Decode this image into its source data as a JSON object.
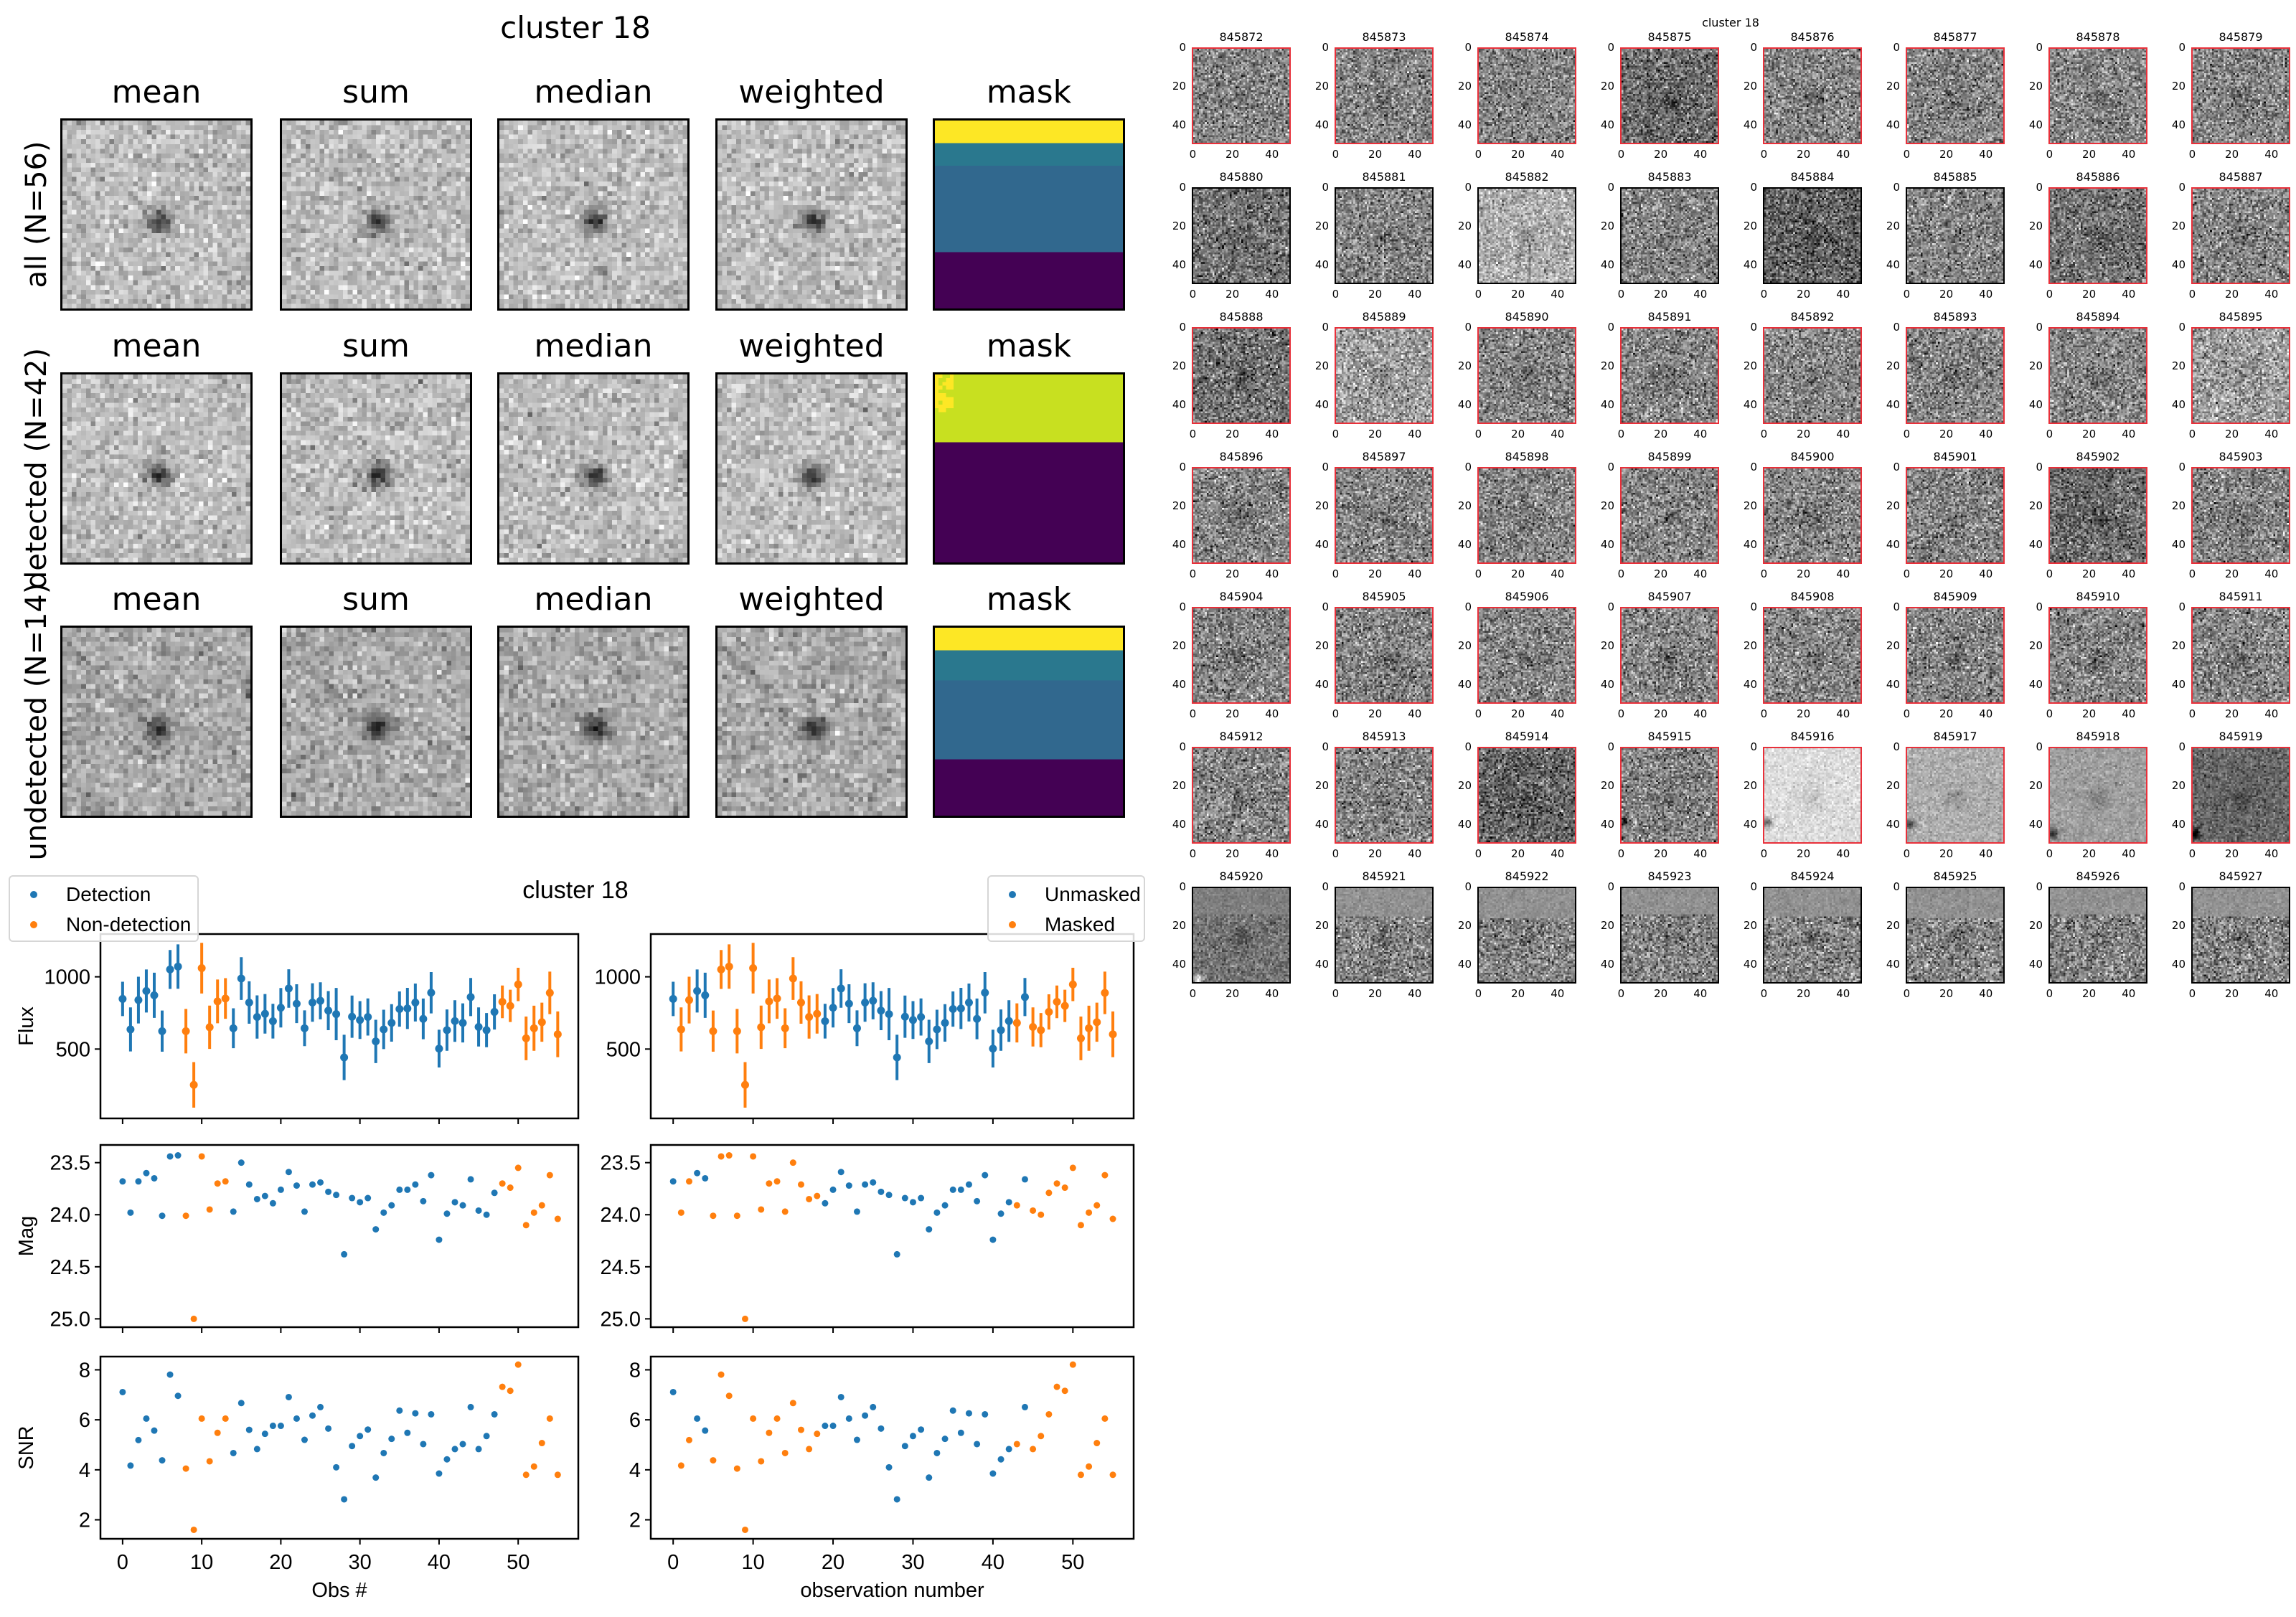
{
  "top_figure": {
    "title": "cluster 18",
    "column_titles": [
      "mean",
      "sum",
      "median",
      "weighted",
      "mask"
    ],
    "row_labels": [
      "all (N=56)",
      "detected (N=42)",
      "undetected (N=14)"
    ]
  },
  "colors": {
    "detection": "#1f77b4",
    "nondetection": "#ff7f0e",
    "detected_border": "#e8303a"
  },
  "chart_data": [
    {
      "type": "scatter",
      "title": "cluster 18",
      "panels": [
        "Flux",
        "Mag",
        "SNR"
      ],
      "left": {
        "legend": [
          "Detection",
          "Non-detection"
        ],
        "legend_position": "top-left",
        "xlabel": "Obs #",
        "color_by": "detected"
      },
      "right": {
        "legend": [
          "Unmasked",
          "Masked"
        ],
        "legend_position": "top-right",
        "xlabel": "observation number",
        "color_by": "masked"
      },
      "xlim": [
        -2.8,
        57.6
      ],
      "xticks": [
        0,
        10,
        20,
        30,
        40,
        50
      ],
      "xtick_labels": [
        "0",
        "10",
        "20",
        "30",
        "40",
        "50"
      ],
      "flux": {
        "ylabel": "Flux",
        "ylim": [
          20,
          1296
        ],
        "yticks": [
          500,
          1000
        ],
        "ytick_labels": [
          "500",
          "1000"
        ]
      },
      "mag": {
        "ylabel": "Mag",
        "ylim": [
          23.33,
          25.08
        ],
        "inverted": true,
        "yticks": [
          23.5,
          24.0,
          24.5,
          25.0
        ],
        "ytick_labels": [
          "23.5",
          "24.0",
          "24.5",
          "25.0"
        ]
      },
      "snr": {
        "ylabel": "SNR",
        "ylim": [
          1.24,
          8.53
        ],
        "yticks": [
          2,
          4,
          6,
          8
        ],
        "ytick_labels": [
          "2",
          "4",
          "6",
          "8"
        ]
      },
      "x": [
        0,
        1,
        2,
        3,
        4,
        5,
        6,
        7,
        8,
        9,
        10,
        11,
        12,
        13,
        14,
        15,
        16,
        17,
        18,
        19,
        20,
        21,
        22,
        23,
        24,
        25,
        26,
        27,
        28,
        29,
        30,
        31,
        32,
        33,
        34,
        35,
        36,
        37,
        38,
        39,
        40,
        41,
        42,
        43,
        44,
        45,
        46,
        47,
        48,
        49,
        50,
        51,
        52,
        53,
        54,
        55
      ],
      "flux_values": [
        847,
        636,
        839,
        902,
        872,
        624,
        1051,
        1071,
        624,
        252,
        1060,
        651,
        830,
        850,
        644,
        988,
        822,
        722,
        744,
        693,
        786,
        919,
        814,
        644,
        822,
        834,
        766,
        742,
        442,
        724,
        701,
        722,
        553,
        636,
        681,
        777,
        781,
        822,
        709,
        890,
        503,
        631,
        694,
        681,
        860,
        653,
        631,
        757,
        827,
        799,
        947,
        574,
        644,
        686,
        889,
        602
      ],
      "mag_values": [
        23.68,
        23.98,
        23.68,
        23.6,
        23.65,
        24.01,
        23.44,
        23.43,
        24.01,
        25.0,
        23.44,
        23.95,
        23.7,
        23.68,
        23.97,
        23.5,
        23.71,
        23.85,
        23.82,
        23.89,
        23.76,
        23.59,
        23.72,
        23.97,
        23.71,
        23.69,
        23.78,
        23.81,
        24.38,
        23.84,
        23.88,
        23.84,
        24.14,
        23.98,
        23.91,
        23.76,
        23.76,
        23.71,
        23.87,
        23.62,
        24.24,
        23.99,
        23.88,
        23.91,
        23.66,
        23.96,
        24.0,
        23.79,
        23.7,
        23.74,
        23.55,
        24.1,
        23.98,
        23.91,
        23.62,
        24.04
      ],
      "snr_values": [
        7.11,
        4.17,
        5.19,
        6.05,
        5.57,
        4.38,
        7.81,
        6.96,
        4.05,
        1.6,
        6.05,
        4.34,
        5.48,
        6.05,
        4.67,
        6.67,
        5.6,
        4.83,
        5.44,
        5.76,
        5.76,
        6.91,
        6.05,
        5.2,
        6.17,
        6.51,
        5.65,
        4.1,
        2.82,
        4.95,
        5.35,
        5.61,
        3.69,
        4.67,
        5.24,
        6.37,
        5.48,
        6.26,
        5.03,
        6.22,
        3.85,
        4.42,
        4.83,
        5.03,
        6.51,
        4.83,
        5.35,
        6.22,
        7.32,
        7.16,
        8.21,
        3.8,
        4.13,
        5.07,
        6.05,
        3.8
      ],
      "detected": [
        1,
        1,
        1,
        1,
        1,
        1,
        1,
        1,
        0,
        0,
        0,
        0,
        0,
        0,
        1,
        1,
        1,
        1,
        1,
        1,
        1,
        1,
        1,
        1,
        1,
        1,
        1,
        1,
        1,
        1,
        1,
        1,
        1,
        1,
        1,
        1,
        1,
        1,
        1,
        1,
        1,
        1,
        1,
        1,
        1,
        1,
        1,
        1,
        0,
        0,
        0,
        0,
        0,
        0,
        0,
        0
      ],
      "masked": [
        0,
        1,
        1,
        0,
        0,
        1,
        1,
        1,
        1,
        1,
        1,
        1,
        1,
        1,
        1,
        1,
        1,
        1,
        1,
        0,
        0,
        0,
        0,
        0,
        0,
        0,
        0,
        0,
        0,
        0,
        0,
        0,
        0,
        0,
        0,
        0,
        0,
        0,
        0,
        0,
        0,
        0,
        0,
        1,
        0,
        1,
        1,
        1,
        1,
        1,
        1,
        1,
        1,
        1,
        1,
        1
      ]
    }
  ],
  "stamp_grid": {
    "title": "cluster 18",
    "axis_tick_labels": [
      "0",
      "20",
      "40"
    ],
    "first_id": 845872,
    "count": 56,
    "background": {
      "845875": 0.42,
      "845880": 0.45,
      "845882": 0.68,
      "845884": 0.38,
      "845886": 0.45,
      "845888": 0.45,
      "845889": 0.62,
      "845895": 0.62,
      "845902": 0.42,
      "845914": 0.4,
      "845916": 0.86,
      "845917": 0.68,
      "845918": 0.62,
      "845919": 0.4,
      "845920": 0.45
    },
    "noise": {
      "845916": 0.35,
      "845917": 0.4,
      "845918": 0.35,
      "845919": 0.55,
      "845920": 0.6,
      "845882": 0.8
    }
  }
}
